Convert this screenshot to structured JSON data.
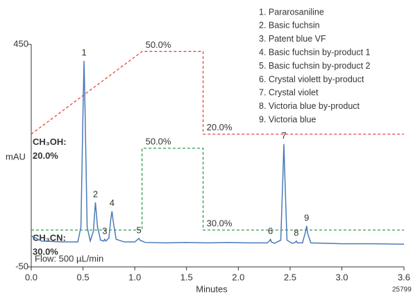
{
  "chart_data": {
    "type": "line",
    "x_label": "Minutes",
    "y_label": "mAU",
    "note": "Flow: 500 µL/min",
    "code": "25799",
    "xlim": [
      0,
      3.6
    ],
    "ylim": [
      -50,
      450
    ],
    "xticks": [
      {
        "value": 0,
        "label": "0.0"
      },
      0.5,
      {
        "value": 1,
        "label": "1.0"
      },
      1.5,
      {
        "value": 2,
        "label": "2.0"
      },
      2.5,
      {
        "value": 3,
        "label": "3.0"
      },
      3.6
    ],
    "yticks": [
      450,
      -50
    ],
    "series": [
      {
        "name": "trace",
        "color": "#4a7ab8",
        "x": [
          0,
          0.1,
          0.3,
          0.45,
          0.48,
          0.5,
          0.51,
          0.52,
          0.54,
          0.57,
          0.6,
          0.62,
          0.64,
          0.67,
          0.7,
          0.71,
          0.72,
          0.75,
          0.77,
          0.78,
          0.79,
          0.82,
          0.9,
          1.0,
          1.03,
          1.04,
          1.05,
          1.1,
          1.3,
          1.5,
          1.7,
          1.9,
          2.1,
          2.28,
          2.3,
          2.31,
          2.32,
          2.35,
          2.41,
          2.43,
          2.44,
          2.45,
          2.47,
          2.52,
          2.55,
          2.56,
          2.57,
          2.62,
          2.65,
          2.66,
          2.67,
          2.7,
          3.0,
          3.3,
          3.6
        ],
        "values": [
          20,
          8,
          6,
          6,
          40,
          300,
          413,
          300,
          40,
          8,
          30,
          95,
          40,
          10,
          8,
          12,
          8,
          15,
          60,
          75,
          55,
          12,
          6,
          6,
          12,
          14,
          10,
          5,
          4,
          5,
          4,
          5,
          4,
          4,
          8,
          12,
          6,
          3,
          10,
          150,
          226,
          150,
          10,
          3,
          5,
          8,
          4,
          4,
          30,
          42,
          25,
          4,
          2,
          2,
          1
        ]
      }
    ],
    "annotations": [
      {
        "text": "1",
        "x": 0.51,
        "y": 413
      },
      {
        "text": "2",
        "x": 0.62,
        "y": 95
      },
      {
        "text": "3",
        "x": 0.71,
        "y": 12
      },
      {
        "text": "4",
        "x": 0.78,
        "y": 75
      },
      {
        "text": "5",
        "x": 1.04,
        "y": 14
      },
      {
        "text": "6",
        "x": 2.31,
        "y": 12
      },
      {
        "text": "7",
        "x": 2.44,
        "y": 226
      },
      {
        "text": "8",
        "x": 2.56,
        "y": 8
      },
      {
        "text": "9",
        "x": 2.66,
        "y": 42
      }
    ],
    "gradients": [
      {
        "name": "CH₃OH:",
        "color": "#e8453c",
        "ylim": [
          -28.2,
          52.6
        ],
        "x": [
          0,
          1.07,
          1.66,
          1.66,
          3.6
        ],
        "values": [
          20,
          50,
          50,
          20,
          20
        ],
        "value_labels": [
          "20.0%",
          "50.0%",
          null,
          "20.0%",
          null
        ]
      },
      {
        "name": "CH₃CN:",
        "color": "#2e9a48",
        "ylim": [
          21,
          75.4
        ],
        "x": [
          0,
          1.07,
          1.07,
          1.66,
          1.66,
          3.6
        ],
        "values": [
          30,
          30,
          50,
          50,
          30,
          30
        ],
        "value_labels": [
          "30.0%",
          null,
          "50.0%",
          null,
          "30.0%",
          null
        ]
      }
    ],
    "legend": [
      "1. Pararosaniline",
      "2. Basic fuchsin",
      "3. Patent blue VF",
      "4. Basic fuchsin by-product 1",
      "5. Basic fuchsin by-product 2",
      "6. Crystal violett by-product",
      "7. Crystal violet",
      "8. Victoria blue by-product",
      "9. Victoria blue"
    ]
  }
}
